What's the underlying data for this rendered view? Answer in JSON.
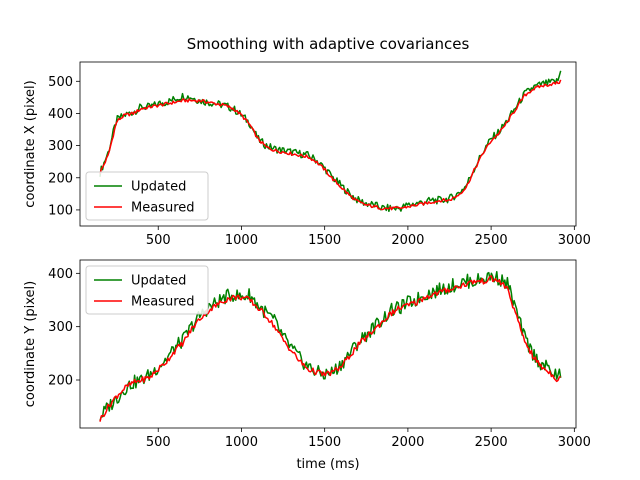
{
  "chart_data": {
    "title": "Smoothing with adaptive covariances",
    "xlabel": "time (ms)",
    "colors": {
      "updated": "#008000",
      "measured": "#ff0000"
    },
    "legend": {
      "updated": "Updated",
      "measured": "Measured"
    },
    "panels": [
      {
        "type": "line",
        "ylabel": "coordinate X (pixel)",
        "xlim": [
          30,
          3010
        ],
        "ylim": [
          50,
          560
        ],
        "xticks": [
          500,
          1000,
          1500,
          2000,
          2500,
          3000
        ],
        "yticks": [
          100,
          200,
          300,
          400,
          500
        ],
        "legend_position": "lower-left",
        "x": [
          150,
          200,
          250,
          300,
          350,
          400,
          450,
          500,
          550,
          600,
          650,
          700,
          750,
          800,
          850,
          900,
          950,
          1000,
          1050,
          1100,
          1150,
          1200,
          1250,
          1300,
          1350,
          1400,
          1450,
          1500,
          1550,
          1600,
          1650,
          1700,
          1750,
          1800,
          1850,
          1900,
          1950,
          2000,
          2050,
          2100,
          2150,
          2200,
          2250,
          2300,
          2350,
          2400,
          2450,
          2500,
          2550,
          2600,
          2650,
          2700,
          2750,
          2800,
          2850,
          2900,
          2920
        ],
        "series": [
          {
            "name": "Updated",
            "values": [
              215,
              280,
              380,
              395,
              405,
              420,
              420,
              430,
              435,
              445,
              455,
              450,
              440,
              435,
              430,
              425,
              415,
              395,
              370,
              320,
              300,
              290,
              285,
              280,
              275,
              270,
              255,
              230,
              200,
              175,
              150,
              130,
              120,
              115,
              105,
              105,
              105,
              115,
              120,
              125,
              130,
              130,
              135,
              150,
              175,
              230,
              280,
              320,
              345,
              380,
              420,
              460,
              480,
              490,
              495,
              500,
              535
            ]
          },
          {
            "name": "Measured",
            "values": [
              215,
              270,
              375,
              395,
              400,
              415,
              420,
              425,
              430,
              435,
              440,
              440,
              440,
              435,
              430,
              425,
              415,
              395,
              365,
              320,
              295,
              285,
              280,
              275,
              270,
              265,
              250,
              225,
              195,
              170,
              145,
              125,
              115,
              110,
              105,
              105,
              105,
              110,
              115,
              120,
              125,
              130,
              130,
              145,
              170,
              225,
              275,
              315,
              340,
              375,
              415,
              455,
              475,
              485,
              490,
              495,
              500
            ]
          }
        ]
      },
      {
        "type": "line",
        "ylabel": "coordinate Y (pixel)",
        "xlim": [
          30,
          3010
        ],
        "ylim": [
          110,
          425
        ],
        "xticks": [
          500,
          1000,
          1500,
          2000,
          2500,
          3000
        ],
        "yticks": [
          200,
          300,
          400
        ],
        "legend_position": "upper-left",
        "x": [
          150,
          200,
          250,
          300,
          350,
          400,
          450,
          500,
          550,
          600,
          650,
          700,
          750,
          800,
          850,
          900,
          950,
          1000,
          1050,
          1100,
          1150,
          1200,
          1250,
          1300,
          1350,
          1400,
          1450,
          1500,
          1550,
          1600,
          1650,
          1700,
          1750,
          1800,
          1850,
          1900,
          1950,
          2000,
          2050,
          2100,
          2150,
          2200,
          2250,
          2300,
          2350,
          2400,
          2450,
          2500,
          2550,
          2600,
          2650,
          2700,
          2750,
          2800,
          2850,
          2900,
          2920
        ],
        "series": [
          {
            "name": "Updated",
            "values": [
              130,
              150,
              165,
              185,
              195,
              200,
              210,
              225,
              240,
              260,
              275,
              300,
              320,
              335,
              345,
              355,
              360,
              355,
              360,
              340,
              325,
              310,
              280,
              260,
              240,
              225,
              215,
              210,
              215,
              230,
              250,
              270,
              285,
              300,
              315,
              330,
              335,
              345,
              350,
              360,
              365,
              370,
              375,
              380,
              385,
              385,
              390,
              395,
              390,
              380,
              330,
              280,
              250,
              230,
              220,
              205,
              215
            ]
          },
          {
            "name": "Measured",
            "values": [
              125,
              150,
              170,
              185,
              195,
              200,
              205,
              220,
              235,
              255,
              270,
              295,
              315,
              330,
              340,
              350,
              355,
              355,
              350,
              335,
              320,
              300,
              275,
              255,
              235,
              220,
              215,
              210,
              215,
              225,
              245,
              265,
              280,
              295,
              310,
              325,
              335,
              340,
              345,
              355,
              360,
              365,
              370,
              375,
              380,
              385,
              385,
              390,
              385,
              370,
              320,
              275,
              245,
              225,
              215,
              200,
              210
            ]
          }
        ]
      }
    ]
  }
}
